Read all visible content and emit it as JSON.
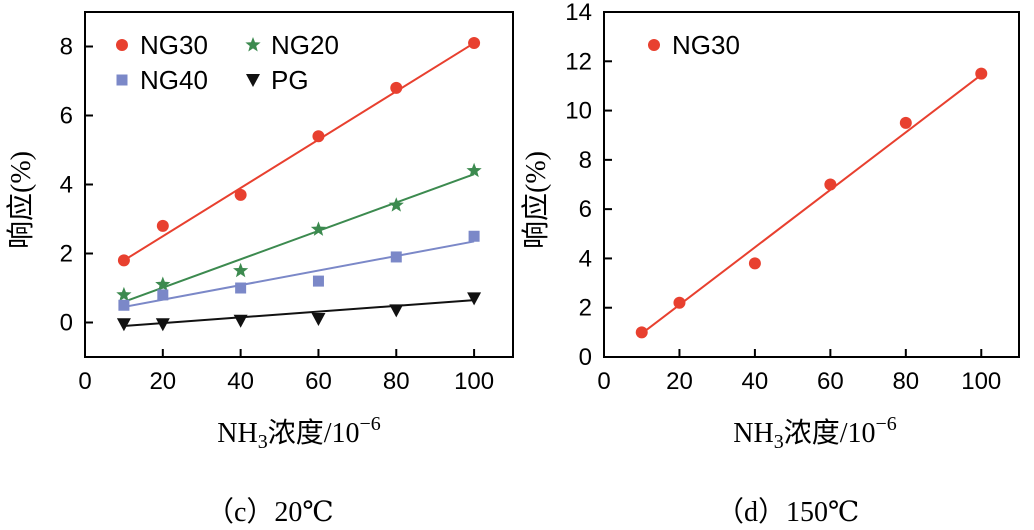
{
  "chart_data": [
    {
      "type": "scatter",
      "panel_caption": "（c）20℃",
      "xlabel_main": "NH",
      "xlabel_sub": "3",
      "xlabel_rest": "浓度/10",
      "xlabel_sup": "−6",
      "ylabel": "响应(%)",
      "xlim": [
        0,
        110
      ],
      "ylim": [
        -1,
        9
      ],
      "xticks": [
        0,
        20,
        40,
        60,
        80,
        100
      ],
      "yticks": [
        0,
        2,
        4,
        6,
        8
      ],
      "legend_position": "top-left",
      "series": [
        {
          "name": "NG30",
          "marker": "circle",
          "color": "#e8402f",
          "x": [
            10,
            20,
            40,
            60,
            80,
            100
          ],
          "y": [
            1.8,
            2.8,
            3.7,
            5.4,
            6.8,
            8.1
          ],
          "fit": [
            [
              10,
              1.8
            ],
            [
              100,
              8.1
            ]
          ]
        },
        {
          "name": "NG20",
          "marker": "star",
          "color": "#3c8a4f",
          "x": [
            10,
            20,
            40,
            60,
            80,
            100
          ],
          "y": [
            0.8,
            1.1,
            1.5,
            2.7,
            3.4,
            4.4
          ],
          "fit": [
            [
              10,
              0.6
            ],
            [
              100,
              4.3
            ]
          ]
        },
        {
          "name": "NG40",
          "marker": "square",
          "color": "#7b88c8",
          "x": [
            10,
            20,
            40,
            60,
            80,
            100
          ],
          "y": [
            0.5,
            0.8,
            1.0,
            1.2,
            1.9,
            2.5
          ],
          "fit": [
            [
              10,
              0.45
            ],
            [
              100,
              2.35
            ]
          ]
        },
        {
          "name": "PG",
          "marker": "triangle-down",
          "color": "#111111",
          "x": [
            10,
            20,
            40,
            60,
            80,
            100
          ],
          "y": [
            -0.05,
            -0.05,
            0.05,
            0.1,
            0.35,
            0.7
          ],
          "fit": [
            [
              10,
              -0.1
            ],
            [
              100,
              0.65
            ]
          ]
        }
      ]
    },
    {
      "type": "scatter",
      "panel_caption": "（d）150℃",
      "xlabel_main": "NH",
      "xlabel_sub": "3",
      "xlabel_rest": "浓度/10",
      "xlabel_sup": "−6",
      "ylabel": "响应(%)",
      "xlim": [
        0,
        110
      ],
      "ylim": [
        0,
        14
      ],
      "xticks": [
        0,
        20,
        40,
        60,
        80,
        100
      ],
      "yticks": [
        2,
        4,
        6,
        8,
        10,
        12,
        14
      ],
      "xtick_labels_shown": [
        0,
        20,
        40,
        60,
        80,
        100
      ],
      "ytick_labels_shown": [
        0,
        2,
        4,
        6,
        8,
        10,
        12,
        14
      ],
      "legend_position": "top-left",
      "series": [
        {
          "name": "NG30",
          "marker": "circle",
          "color": "#e8402f",
          "x": [
            10,
            20,
            40,
            60,
            80,
            100
          ],
          "y": [
            1.0,
            2.2,
            3.8,
            7.0,
            9.5,
            11.5
          ],
          "fit": [
            [
              10,
              0.95
            ],
            [
              100,
              11.45
            ]
          ]
        }
      ]
    }
  ]
}
